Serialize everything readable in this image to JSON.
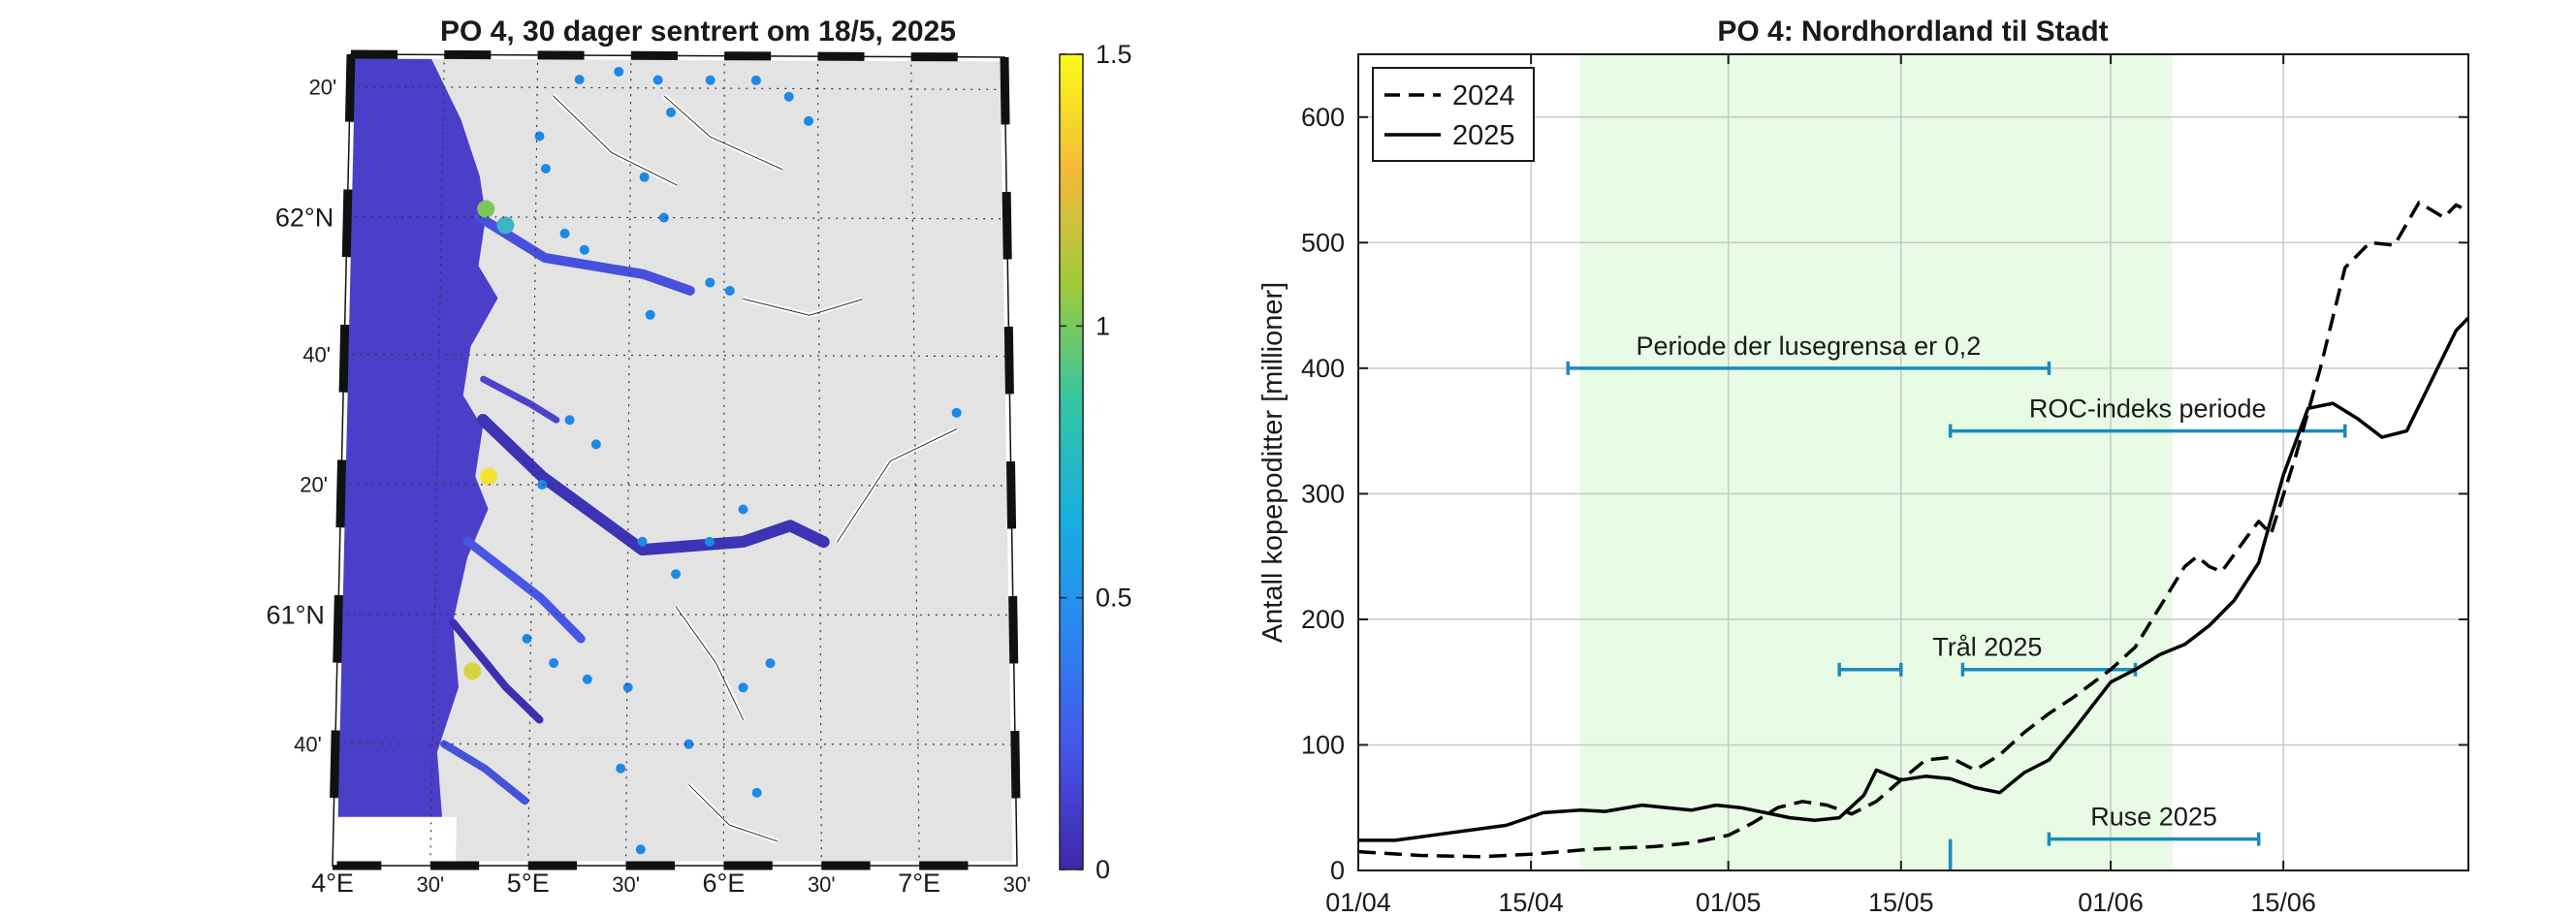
{
  "map_panel": {
    "title": "PO 4, 30 dager sentrert om 18/5, 2025",
    "lon_labels": [
      "4°E",
      "30'",
      "5°E",
      "30'",
      "6°E",
      "30'",
      "7°E",
      "30'"
    ],
    "lat_labels": [
      "20'",
      "62°N",
      "40'",
      "20'",
      "61°N",
      "40'"
    ],
    "colorbar": {
      "min": 0,
      "max": 1.5,
      "ticks": [
        "1.5",
        "1",
        "0.5",
        "0"
      ],
      "colors": [
        "#3e26a8",
        "#4653e8",
        "#2c84f0",
        "#17aee0",
        "#33c5a4",
        "#9ccb3c",
        "#f5b93a",
        "#f9fb15"
      ]
    },
    "colors": {
      "sea": "#4a3fc8",
      "land": "#e3e3e3",
      "marker": "#1e88e5"
    }
  },
  "chart_data": {
    "type": "line",
    "title": "PO 4: Nordhordland til Stadt",
    "ylabel": "Antall kopepoditter [millioner]",
    "xlabel": "",
    "xlim": [
      "2025-04-01",
      "2025-06-30"
    ],
    "ylim": [
      0,
      650
    ],
    "xticks": [
      {
        "date": "2025-04-01",
        "label": "01/04"
      },
      {
        "date": "2025-04-15",
        "label": "15/04"
      },
      {
        "date": "2025-05-01",
        "label": "01/05"
      },
      {
        "date": "2025-05-15",
        "label": "15/05"
      },
      {
        "date": "2025-06-01",
        "label": "01/06"
      },
      {
        "date": "2025-06-15",
        "label": "15/06"
      }
    ],
    "yticks": [
      0,
      100,
      200,
      300,
      400,
      500,
      600
    ],
    "grid": true,
    "legend_position": "top-left",
    "shaded_period": {
      "start": "2025-04-19",
      "end": "2025-06-06",
      "color": "#e7fbe5"
    },
    "series": [
      {
        "name": "2024",
        "style": "dashed",
        "color": "#000000",
        "points": [
          [
            "2025-04-01",
            15
          ],
          [
            "2025-04-06",
            12
          ],
          [
            "2025-04-11",
            11
          ],
          [
            "2025-04-15",
            13
          ],
          [
            "2025-04-20",
            17
          ],
          [
            "2025-04-25",
            19
          ],
          [
            "2025-04-28",
            22
          ],
          [
            "2025-05-01",
            28
          ],
          [
            "2025-05-03",
            38
          ],
          [
            "2025-05-05",
            50
          ],
          [
            "2025-05-07",
            55
          ],
          [
            "2025-05-09",
            52
          ],
          [
            "2025-05-11",
            45
          ],
          [
            "2025-05-13",
            55
          ],
          [
            "2025-05-15",
            72
          ],
          [
            "2025-05-17",
            88
          ],
          [
            "2025-05-19",
            90
          ],
          [
            "2025-05-21",
            80
          ],
          [
            "2025-05-23",
            92
          ],
          [
            "2025-05-25",
            110
          ],
          [
            "2025-05-27",
            125
          ],
          [
            "2025-05-29",
            138
          ],
          [
            "2025-06-01",
            160
          ],
          [
            "2025-06-03",
            178
          ],
          [
            "2025-06-05",
            210
          ],
          [
            "2025-06-07",
            242
          ],
          [
            "2025-06-08",
            250
          ],
          [
            "2025-06-09",
            242
          ],
          [
            "2025-06-10",
            238
          ],
          [
            "2025-06-12",
            265
          ],
          [
            "2025-06-13",
            278
          ],
          [
            "2025-06-14",
            268
          ],
          [
            "2025-06-16",
            330
          ],
          [
            "2025-06-18",
            400
          ],
          [
            "2025-06-20",
            480
          ],
          [
            "2025-06-22",
            500
          ],
          [
            "2025-06-24",
            498
          ],
          [
            "2025-06-26",
            532
          ],
          [
            "2025-06-28",
            520
          ],
          [
            "2025-06-29",
            530
          ],
          [
            "2025-06-30",
            525
          ]
        ]
      },
      {
        "name": "2025",
        "style": "solid",
        "color": "#000000",
        "points": [
          [
            "2025-04-01",
            24
          ],
          [
            "2025-04-04",
            24
          ],
          [
            "2025-04-07",
            28
          ],
          [
            "2025-04-10",
            32
          ],
          [
            "2025-04-13",
            36
          ],
          [
            "2025-04-16",
            46
          ],
          [
            "2025-04-19",
            48
          ],
          [
            "2025-04-21",
            47
          ],
          [
            "2025-04-24",
            52
          ],
          [
            "2025-04-26",
            50
          ],
          [
            "2025-04-28",
            48
          ],
          [
            "2025-04-30",
            52
          ],
          [
            "2025-05-02",
            50
          ],
          [
            "2025-05-04",
            46
          ],
          [
            "2025-05-06",
            42
          ],
          [
            "2025-05-08",
            40
          ],
          [
            "2025-05-10",
            42
          ],
          [
            "2025-05-12",
            60
          ],
          [
            "2025-05-13",
            80
          ],
          [
            "2025-05-15",
            72
          ],
          [
            "2025-05-17",
            75
          ],
          [
            "2025-05-19",
            73
          ],
          [
            "2025-05-21",
            66
          ],
          [
            "2025-05-23",
            62
          ],
          [
            "2025-05-25",
            78
          ],
          [
            "2025-05-27",
            88
          ],
          [
            "2025-05-29",
            112
          ],
          [
            "2025-06-01",
            150
          ],
          [
            "2025-06-03",
            160
          ],
          [
            "2025-06-05",
            172
          ],
          [
            "2025-06-07",
            180
          ],
          [
            "2025-06-09",
            195
          ],
          [
            "2025-06-11",
            215
          ],
          [
            "2025-06-13",
            245
          ],
          [
            "2025-06-15",
            315
          ],
          [
            "2025-06-17",
            368
          ],
          [
            "2025-06-19",
            372
          ],
          [
            "2025-06-21",
            360
          ],
          [
            "2025-06-23",
            345
          ],
          [
            "2025-06-25",
            350
          ],
          [
            "2025-06-27",
            390
          ],
          [
            "2025-06-29",
            430
          ],
          [
            "2025-06-30",
            440
          ]
        ]
      }
    ],
    "annotations": [
      {
        "label": "Periode der lusegrensa er 0,2",
        "start": "2025-04-18",
        "end": "2025-05-27",
        "y": 400
      },
      {
        "label": "ROC-indeks periode",
        "start": "2025-05-19",
        "end": "2025-06-20",
        "y": 350
      },
      {
        "label": "Trål 2025",
        "segments": [
          [
            "2025-05-10",
            "2025-05-15"
          ],
          [
            "2025-05-20",
            "2025-06-03"
          ]
        ],
        "y": 160
      },
      {
        "label": "Ruse 2025",
        "start": "2025-05-27",
        "end": "2025-06-13",
        "y": 25
      }
    ],
    "marker": {
      "date": "2025-05-19",
      "y_from": 0,
      "y_to": 25
    },
    "annotation_color": "#1a8bbd"
  }
}
